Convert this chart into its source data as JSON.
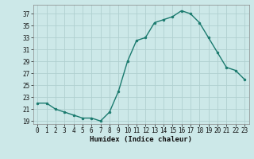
{
  "x": [
    0,
    1,
    2,
    3,
    4,
    5,
    6,
    7,
    8,
    9,
    10,
    11,
    12,
    13,
    14,
    15,
    16,
    17,
    18,
    19,
    20,
    21,
    22,
    23
  ],
  "y": [
    22,
    22,
    21,
    20.5,
    20,
    19.5,
    19.5,
    19,
    20.5,
    24,
    29,
    32.5,
    33,
    35.5,
    36,
    36.5,
    37.5,
    37,
    35.5,
    33,
    30.5,
    28,
    27.5,
    26
  ],
  "line_color": "#1a7a6e",
  "marker_color": "#1a7a6e",
  "bg_color": "#cce8e8",
  "grid_color": "#b0d0d0",
  "xlabel": "Humidex (Indice chaleur)",
  "xlim": [
    -0.5,
    23.5
  ],
  "ylim": [
    18.5,
    38.5
  ],
  "yticks": [
    19,
    21,
    23,
    25,
    27,
    29,
    31,
    33,
    35,
    37
  ],
  "xticks": [
    0,
    1,
    2,
    3,
    4,
    5,
    6,
    7,
    8,
    9,
    10,
    11,
    12,
    13,
    14,
    15,
    16,
    17,
    18,
    19,
    20,
    21,
    22,
    23
  ]
}
